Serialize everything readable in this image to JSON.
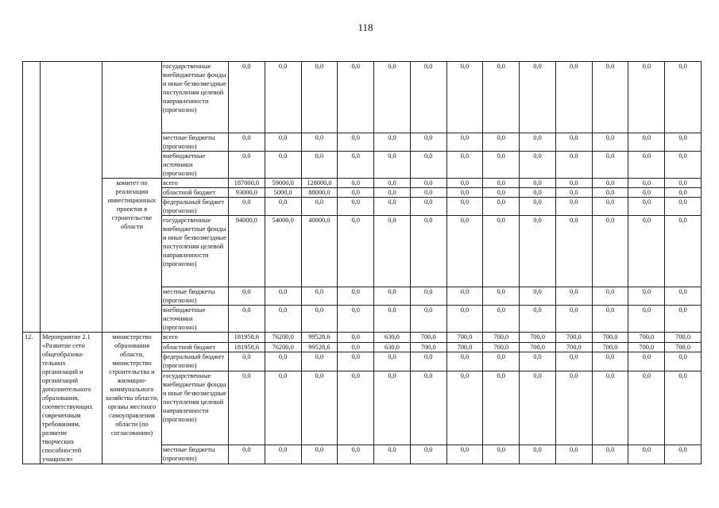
{
  "page_number": "118",
  "table": {
    "blocks": [
      {
        "no": "",
        "event": "",
        "executors": [
          {
            "name": "",
            "rows": [
              {
                "source": "государственные внебюджетные фонды и иные безвозмездные поступления целевой направленности (прогнозно)",
                "values": [
                  "0,0",
                  "0,0",
                  "0,0",
                  "0,0",
                  "0,0",
                  "0,0",
                  "0,0",
                  "0,0",
                  "0,0",
                  "0,0",
                  "0,0",
                  "0,0",
                  "0,0"
                ]
              },
              {
                "source": "местные бюджеты (прогнозно)",
                "values": [
                  "0,0",
                  "0,0",
                  "0,0",
                  "0,0",
                  "0,0",
                  "0,0",
                  "0,0",
                  "0,0",
                  "0,0",
                  "0,0",
                  "0,0",
                  "0,0",
                  "0,0"
                ]
              },
              {
                "source": "внебюджетные источники (прогнозно)",
                "values": [
                  "0,0",
                  "0,0",
                  "0,0",
                  "0,0",
                  "0,0",
                  "0,0",
                  "0,0",
                  "0,0",
                  "0,0",
                  "0,0",
                  "0,0",
                  "0,0",
                  "0,0"
                ]
              }
            ]
          },
          {
            "name": "комитет по реализации инвестиционных проектов в строительстве области",
            "rows": [
              {
                "source": "всего",
                "values": [
                  "187000,0",
                  "59000,0",
                  "128000,0",
                  "0,0",
                  "0,0",
                  "0,0",
                  "0,0",
                  "0,0",
                  "0,0",
                  "0,0",
                  "0,0",
                  "0,0",
                  "0,0"
                ]
              },
              {
                "source": "областной бюджет",
                "values": [
                  "93000,0",
                  "5000,0",
                  "88000,0",
                  "0,0",
                  "0,0",
                  "0,0",
                  "0,0",
                  "0,0",
                  "0,0",
                  "0,0",
                  "0,0",
                  "0,0",
                  "0,0"
                ]
              },
              {
                "source": "федеральный бюджет (прогнозно)",
                "values": [
                  "0,0",
                  "0,0",
                  "0,0",
                  "0,0",
                  "0,0",
                  "0,0",
                  "0,0",
                  "0,0",
                  "0,0",
                  "0,0",
                  "0,0",
                  "0,0",
                  "0,0"
                ]
              },
              {
                "source": "государственные внебюджетные фонды и иные безвозмездные поступления целевой направленности (прогнозно)",
                "values": [
                  "94000,0",
                  "54000,0",
                  "40000,0",
                  "0,0",
                  "0,0",
                  "0,0",
                  "0,0",
                  "0,0",
                  "0,0",
                  "0,0",
                  "0,0",
                  "0,0",
                  "0,0"
                ]
              },
              {
                "source": "местные бюджеты (прогнозно)",
                "values": [
                  "0,0",
                  "0,0",
                  "0,0",
                  "0,0",
                  "0,0",
                  "0,0",
                  "0,0",
                  "0,0",
                  "0,0",
                  "0,0",
                  "0,0",
                  "0,0",
                  "0,0"
                ]
              },
              {
                "source": "внебюджетные источники (прогнозно)",
                "values": [
                  "0,0",
                  "0,0",
                  "0,0",
                  "0,0",
                  "0,0",
                  "0,0",
                  "0,0",
                  "0,0",
                  "0,0",
                  "0,0",
                  "0,0",
                  "0,0",
                  "0,0"
                ]
              }
            ]
          }
        ]
      },
      {
        "no": "12.",
        "event": "Мероприятие 2.1 «Развитие сети общеобразова-тельных организаций и организаций дополнительного образования, соответствующих современным требованиям, развитие творческих способностей учащихся»",
        "executors": [
          {
            "name": "министерство образования области, министерство строительства и жилищно-коммунального хозяйства области, органы местного самоуправления области (по согласованию)",
            "rows": [
              {
                "source": "всего",
                "values": [
                  "181958,6",
                  "76200,0",
                  "99528,6",
                  "0,0",
                  "630,0",
                  "700,0",
                  "700,0",
                  "700,0",
                  "700,0",
                  "700,0",
                  "700,0",
                  "700,0",
                  "700,0"
                ]
              },
              {
                "source": "областной бюджет",
                "values": [
                  "181958,6",
                  "76200,0",
                  "99528,6",
                  "0,0",
                  "630,0",
                  "700,0",
                  "700,0",
                  "700,0",
                  "700,0",
                  "700,0",
                  "700,0",
                  "700,0",
                  "700,0"
                ]
              },
              {
                "source": "федеральный бюджет (прогнозно)",
                "values": [
                  "0,0",
                  "0,0",
                  "0,0",
                  "0,0",
                  "0,0",
                  "0,0",
                  "0,0",
                  "0,0",
                  "0,0",
                  "0,0",
                  "0,0",
                  "0,0",
                  "0,0"
                ]
              },
              {
                "source": "государственные внебюджетные фонды и иные безвозмездные поступления целевой направленности (прогнозно)",
                "values": [
                  "0,0",
                  "0,0",
                  "0,0",
                  "0,0",
                  "0,0",
                  "0,0",
                  "0,0",
                  "0,0",
                  "0,0",
                  "0,0",
                  "0,0",
                  "0,0",
                  "0,0"
                ]
              },
              {
                "source": "местные бюджеты (прогнозно)",
                "values": [
                  "0,0",
                  "0,0",
                  "0,0",
                  "0,0",
                  "0,0",
                  "0,0",
                  "0,0",
                  "0,0",
                  "0,0",
                  "0,0",
                  "0,0",
                  "0,0",
                  "0,0"
                ]
              }
            ]
          }
        ]
      }
    ]
  }
}
